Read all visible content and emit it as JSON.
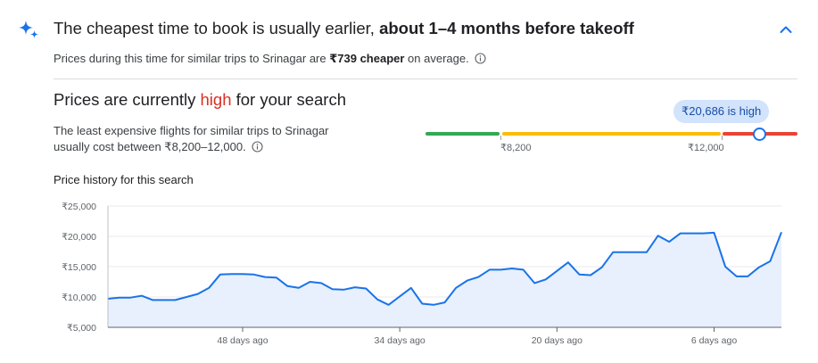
{
  "header": {
    "headline_prefix": "The cheapest time to book is usually earlier, ",
    "headline_bold": "about 1–4 months before takeoff",
    "subtitle_prefix": "Prices during this time for similar trips to Srinagar are ",
    "subtitle_bold": "₹739 cheaper",
    "subtitle_suffix": " on average.",
    "icon": "sparkle-icon",
    "collapse_icon": "chevron-up-icon"
  },
  "price_status": {
    "title_prefix": "Prices are currently ",
    "title_level": "high",
    "title_suffix": " for your search",
    "description_line1": "The least expensive flights for similar trips to Srinagar",
    "description_line2": "usually cost between ₹8,200–12,000.",
    "current_price_label": "₹20,686 is high",
    "range_low_label": "₹8,200",
    "range_high_label": "₹12,000",
    "colors": {
      "low": "#34a853",
      "typical": "#fbbc04",
      "high": "#ea4335",
      "level_text": "#d93025"
    }
  },
  "history": {
    "title": "Price history for this search"
  },
  "chart_data": {
    "type": "area",
    "title": "Price history for this search",
    "xlabel": "",
    "ylabel": "",
    "ylim": [
      5000,
      25000
    ],
    "y_ticks": [
      5000,
      10000,
      15000,
      20000,
      25000
    ],
    "y_tick_labels": [
      "₹5,000",
      "₹10,000",
      "₹15,000",
      "₹20,000",
      "₹25,000"
    ],
    "x_range_days_ago": [
      60,
      0
    ],
    "x_ticks": [
      48,
      34,
      20,
      6
    ],
    "x_tick_labels": [
      "48 days ago",
      "34 days ago",
      "20 days ago",
      "6 days ago"
    ],
    "grid": true,
    "line_color": "#1a73e8",
    "fill_color": "#e8f0fe",
    "series": [
      {
        "days_ago": [
          60,
          59,
          58,
          57,
          56,
          55,
          54,
          53,
          52,
          51,
          50,
          49,
          48,
          47,
          46,
          45,
          44,
          43,
          42,
          41,
          40,
          39,
          38,
          37,
          36,
          35,
          34,
          33,
          32,
          31,
          30,
          29,
          28,
          27,
          26,
          25,
          24,
          23,
          22,
          21,
          20,
          19,
          18,
          17,
          16,
          15,
          14,
          13,
          12,
          11,
          10,
          9,
          8,
          7,
          6,
          5,
          4,
          3,
          2,
          1,
          0
        ],
        "values": [
          9700,
          9900,
          9900,
          10200,
          9500,
          9500,
          9500,
          10000,
          10500,
          11500,
          13700,
          13800,
          13800,
          13700,
          13300,
          13200,
          11800,
          11500,
          12500,
          12300,
          11300,
          11200,
          11600,
          11400,
          9600,
          8700,
          10100,
          11500,
          8900,
          8700,
          9100,
          11500,
          12700,
          13300,
          14500,
          14500,
          14700,
          14500,
          12300,
          12900,
          14300,
          15700,
          13700,
          13600,
          14900,
          17400,
          17400,
          17400,
          17400,
          20100,
          19100,
          20500,
          20500,
          20500,
          20600,
          15000,
          13400,
          13400,
          14900,
          15900,
          20686
        ]
      }
    ]
  }
}
